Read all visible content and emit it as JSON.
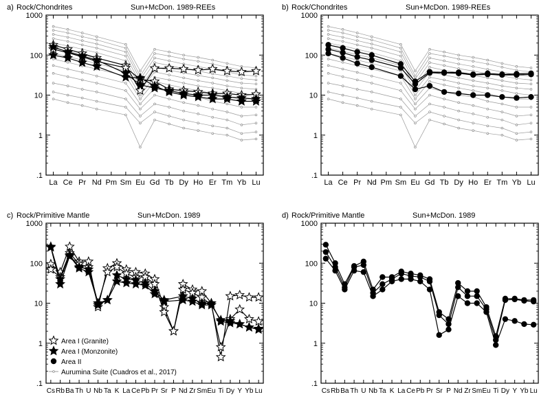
{
  "figure": {
    "background": "#ffffff",
    "frame_color": "#000000",
    "ref_color": "#9a9a9a",
    "ref_width_note": "thin grey reference lines"
  },
  "chart_data": [
    {
      "id": "a",
      "type": "line",
      "yscale": "log",
      "ylim": [
        0.1,
        1000
      ],
      "yticks": [
        "1000",
        "100",
        "10",
        "1",
        ".1"
      ],
      "panel_label": "a)",
      "ylabel": "Rock/Chondrites",
      "title": "Sun+McDon. 1989-REEs",
      "categories": [
        "La",
        "Ce",
        "Pr",
        "Nd",
        "Pm",
        "Sm",
        "Eu",
        "Gd",
        "Tb",
        "Dy",
        "Ho",
        "Er",
        "Tm",
        "Yb",
        "Lu"
      ],
      "reference_series": [
        {
          "name": "Aurumina Suite ref 1",
          "values": [
            520,
            440,
            360,
            290,
            null,
            185,
            40,
            140,
            120,
            100,
            88,
            75,
            62,
            52,
            48
          ]
        },
        {
          "name": "Aurumina Suite ref 2",
          "values": [
            420,
            360,
            290,
            240,
            null,
            150,
            30,
            110,
            95,
            80,
            70,
            60,
            50,
            42,
            38
          ]
        },
        {
          "name": "Aurumina Suite ref 3",
          "values": [
            330,
            280,
            230,
            190,
            null,
            120,
            25,
            85,
            72,
            60,
            52,
            44,
            38,
            32,
            30
          ]
        },
        {
          "name": "Aurumina Suite ref 4",
          "values": [
            260,
            220,
            180,
            150,
            null,
            95,
            20,
            65,
            55,
            46,
            40,
            34,
            30,
            26,
            24
          ]
        },
        {
          "name": "Aurumina Suite ref 5",
          "values": [
            200,
            170,
            140,
            115,
            null,
            72,
            16,
            50,
            42,
            36,
            31,
            27,
            23,
            20,
            19
          ]
        },
        {
          "name": "Aurumina Suite ref 6",
          "values": [
            150,
            125,
            102,
            85,
            null,
            55,
            13,
            38,
            32,
            27,
            23,
            20,
            17,
            15,
            14
          ]
        },
        {
          "name": "Aurumina Suite ref 7",
          "values": [
            110,
            92,
            75,
            62,
            null,
            40,
            10,
            28,
            24,
            20,
            17,
            15,
            13,
            11,
            10
          ]
        },
        {
          "name": "Aurumina Suite ref 8",
          "values": [
            80,
            66,
            54,
            45,
            null,
            30,
            8,
            22,
            18,
            15,
            13,
            11,
            9,
            8,
            8
          ]
        },
        {
          "name": "Aurumina Suite ref 9",
          "values": [
            55,
            45,
            37,
            30,
            null,
            20,
            6,
            15,
            12,
            10,
            9,
            7,
            6,
            5,
            5
          ]
        },
        {
          "name": "Aurumina Suite ref 10",
          "values": [
            35,
            29,
            24,
            20,
            null,
            13,
            4.5,
            10,
            8,
            6.5,
            5.5,
            4.5,
            3.8,
            3,
            3.2
          ]
        },
        {
          "name": "Aurumina Suite ref 11",
          "values": [
            20,
            17,
            14,
            12,
            null,
            8,
            3,
            6,
            5,
            4,
            3.4,
            2.8,
            2.4,
            1.8,
            2
          ]
        },
        {
          "name": "Aurumina Suite ref 12",
          "values": [
            12,
            10,
            8.5,
            7,
            null,
            5,
            2,
            3.8,
            3,
            2.4,
            2,
            1.7,
            1.5,
            1.1,
            1.2
          ]
        },
        {
          "name": "Aurumina Suite ref 13",
          "values": [
            8,
            6.5,
            5.5,
            4.5,
            null,
            3.2,
            0.5,
            2.4,
            1.9,
            1.5,
            1.3,
            1.1,
            1,
            0.75,
            0.8
          ]
        }
      ],
      "series": [
        {
          "name": "Area I (Granite)",
          "marker": "open-star",
          "values": [
            180,
            140,
            110,
            85,
            null,
            55,
            13,
            47,
            47,
            45,
            42,
            45,
            40,
            38,
            40
          ]
        },
        {
          "name": "Area I (Granite)",
          "marker": "open-star",
          "values": [
            140,
            115,
            90,
            70,
            null,
            48,
            25,
            22,
            14,
            13,
            12,
            11,
            11,
            10,
            10.5
          ]
        },
        {
          "name": "Area I (Monzonite)",
          "marker": "filled-star",
          "values": [
            100,
            85,
            65,
            52,
            null,
            28,
            27,
            17,
            12,
            10,
            9,
            8,
            8,
            7,
            7
          ]
        },
        {
          "name": "Area I (Monzonite)",
          "marker": "filled-star",
          "values": [
            160,
            120,
            95,
            75,
            null,
            35,
            18,
            15,
            13,
            11,
            10,
            10,
            9,
            8.5,
            8
          ]
        }
      ]
    },
    {
      "id": "b",
      "type": "line",
      "yscale": "log",
      "ylim": [
        0.1,
        1000
      ],
      "yticks": [
        "1000",
        "100",
        "10",
        "1",
        ".1"
      ],
      "panel_label": "b)",
      "ylabel": "Rock/Chondrites",
      "title": "Sun+McDon. 1989-REEs",
      "categories": [
        "La",
        "Ce",
        "Pr",
        "Nd",
        "Pm",
        "Sm",
        "Eu",
        "Gd",
        "Tb",
        "Dy",
        "Ho",
        "Er",
        "Tm",
        "Yb",
        "Lu"
      ],
      "reference_series": "same as panel a",
      "series": [
        {
          "name": "Area II",
          "marker": "filled-circle",
          "values": [
            180,
            150,
            120,
            100,
            null,
            60,
            22,
            38,
            37,
            37,
            33,
            35,
            33,
            34,
            35
          ]
        },
        {
          "name": "Area II",
          "marker": "filled-circle",
          "values": [
            140,
            115,
            90,
            75,
            null,
            48,
            19,
            36,
            36,
            35,
            32,
            33,
            32,
            32,
            33
          ]
        },
        {
          "name": "Area II",
          "marker": "filled-circle",
          "values": [
            110,
            85,
            62,
            50,
            null,
            30,
            14,
            17,
            12,
            11,
            10,
            10,
            9,
            8.5,
            9
          ]
        }
      ]
    },
    {
      "id": "c",
      "type": "line",
      "yscale": "log",
      "ylim": [
        0.1,
        1000
      ],
      "yticks": [
        "1000",
        "100",
        "10",
        "1",
        ".1"
      ],
      "panel_label": "c)",
      "ylabel": "Rock/Primitive Mantle",
      "title": "Sun+McDon. 1989",
      "categories": [
        "Cs",
        "Rb",
        "Ba",
        "Th",
        "U",
        "Nb",
        "Ta",
        "K",
        "La",
        "Ce",
        "Pb",
        "Pr",
        "Sr",
        "P",
        "Nd",
        "Zr",
        "Sm",
        "Eu",
        "Ti",
        "Dy",
        "Y",
        "Yb",
        "Lu"
      ],
      "series": [
        {
          "name": "Area I (Granite)",
          "marker": "open-star",
          "values": [
            95,
            60,
            260,
            110,
            110,
            8,
            75,
            100,
            70,
            60,
            55,
            40,
            8,
            2,
            30,
            22,
            20,
            10,
            0.45,
            15,
            16,
            14,
            14
          ]
        },
        {
          "name": "Area I (Granite)",
          "marker": "open-star",
          "values": [
            70,
            45,
            180,
            95,
            80,
            10,
            60,
            80,
            55,
            45,
            45,
            30,
            6,
            2,
            22,
            18,
            14,
            9,
            0.8,
            4,
            7,
            4,
            3.5
          ]
        },
        {
          "name": "Area I (Monzonite)",
          "marker": "filled-star",
          "values": [
            260,
            40,
            160,
            80,
            70,
            9,
            12,
            50,
            40,
            38,
            32,
            20,
            12,
            null,
            15,
            13,
            10,
            10,
            3.5,
            3.2,
            3,
            2.5,
            2.2
          ]
        },
        {
          "name": "Area I (Monzonite)",
          "marker": "filled-star",
          "values": [
            250,
            30,
            150,
            75,
            60,
            10,
            12,
            35,
            32,
            30,
            28,
            17,
            11,
            null,
            12,
            11,
            9,
            9,
            3.8,
            3.6,
            3,
            2.5,
            2.3
          ]
        }
      ],
      "legend": {
        "position": "bottom-left",
        "entries": [
          {
            "label": "Area I (Granite)",
            "marker": "open-star"
          },
          {
            "label": "Area I (Monzonite)",
            "marker": "filled-star"
          },
          {
            "label": "Area II",
            "marker": "filled-circle"
          },
          {
            "label": "Aurumina Suite (Cuadros et al., 2017)",
            "marker": "small-open-circle-line"
          }
        ]
      }
    },
    {
      "id": "d",
      "type": "line",
      "yscale": "log",
      "ylim": [
        0.1,
        1000
      ],
      "yticks": [
        "1000",
        "100",
        "10",
        "1",
        ".1"
      ],
      "panel_label": "d)",
      "ylabel": "Rock/Primitive Mantle",
      "title": "Sun+McDon. 1989",
      "categories": [
        "Cs",
        "Rb",
        "Ba",
        "Th",
        "U",
        "Nb",
        "Ta",
        "K",
        "La",
        "Ce",
        "Pb",
        "Pr",
        "Sr",
        "P",
        "Nd",
        "Zr",
        "Sm",
        "Eu",
        "Ti",
        "Dy",
        "Y",
        "Yb",
        "Lu"
      ],
      "series": [
        {
          "name": "Area II",
          "marker": "filled-circle",
          "values": [
            290,
            100,
            30,
            85,
            110,
            22,
            45,
            45,
            62,
            55,
            50,
            40,
            6,
            4,
            32,
            20,
            20,
            8,
            1.5,
            13,
            13,
            12,
            12
          ]
        },
        {
          "name": "Area II",
          "marker": "filled-circle",
          "values": [
            190,
            80,
            25,
            80,
            90,
            18,
            30,
            40,
            55,
            48,
            45,
            35,
            5,
            3,
            25,
            15,
            15,
            7,
            1.2,
            12,
            12.5,
            11.5,
            11
          ]
        },
        {
          "name": "Area II",
          "marker": "filled-circle",
          "values": [
            130,
            65,
            22,
            65,
            60,
            15,
            22,
            35,
            40,
            40,
            35,
            22,
            1.6,
            2.2,
            15,
            10,
            10,
            6,
            0.9,
            4,
            3.6,
            3,
            2.9
          ]
        }
      ]
    }
  ]
}
